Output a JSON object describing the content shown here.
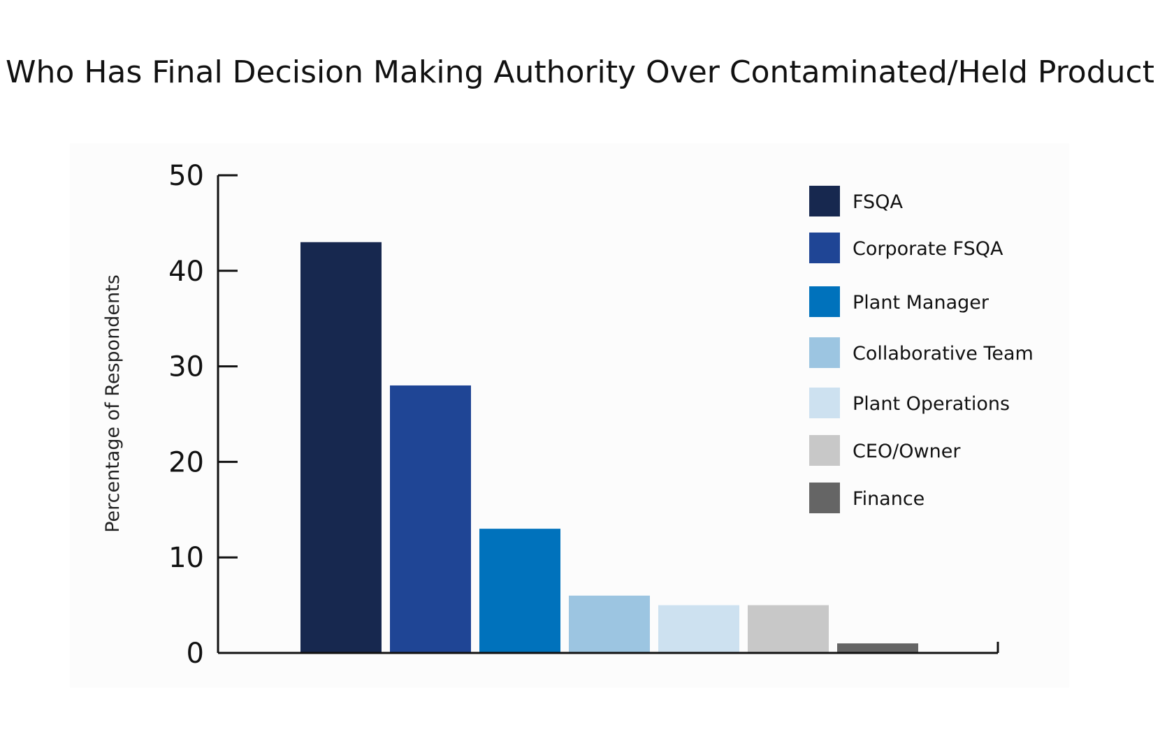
{
  "chart_data": {
    "type": "bar",
    "title": "Who Has Final Decision Making Authority Over Contaminated/Held Product",
    "ylabel": "Percentage of Respondents",
    "xlabel": "",
    "ylim": [
      0,
      50
    ],
    "yticks": [
      "0",
      "10",
      "20",
      "30",
      "40",
      "50"
    ],
    "grid": false,
    "legend_position": "top-right",
    "categories": [
      "FSQA",
      "Corporate FSQA",
      "Plant Manager",
      "Collaborative Team",
      "Plant Operations",
      "CEO/Owner",
      "Finance"
    ],
    "values": [
      43,
      28,
      13,
      6,
      5,
      5,
      1
    ],
    "colors": [
      "#17284f",
      "#1f4595",
      "#0072bc",
      "#9cc5e1",
      "#cde1f0",
      "#c8c8c8",
      "#656565"
    ]
  }
}
